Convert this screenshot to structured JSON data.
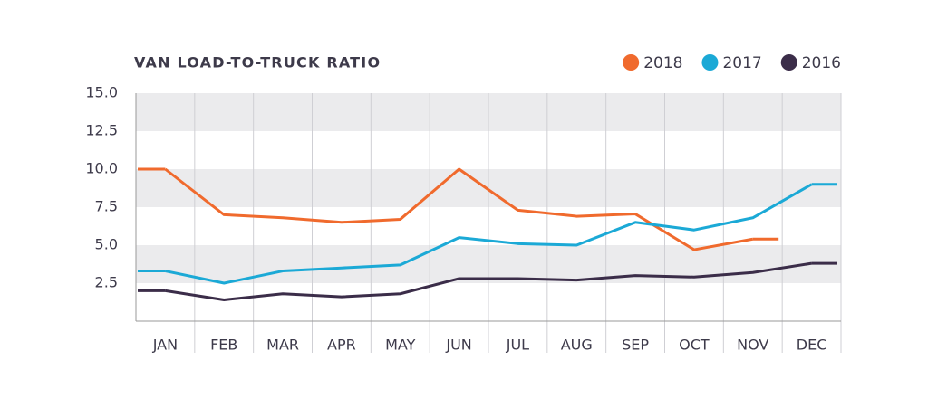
{
  "chart_data": {
    "type": "line",
    "title": "VAN LOAD-TO-TRUCK RATIO",
    "categories": [
      "JAN",
      "FEB",
      "MAR",
      "APR",
      "MAY",
      "JUN",
      "JUL",
      "AUG",
      "SEP",
      "OCT",
      "NOV",
      "DEC"
    ],
    "series": [
      {
        "name": "2018",
        "color": "#f06a2d",
        "values": [
          10.0,
          7.0,
          6.8,
          6.5,
          6.7,
          10.0,
          7.3,
          6.9,
          7.05,
          4.7,
          5.4,
          null
        ]
      },
      {
        "name": "2017",
        "color": "#1ba9d6",
        "values": [
          3.3,
          2.5,
          3.3,
          3.5,
          3.7,
          5.5,
          5.1,
          5.0,
          6.5,
          6.0,
          6.8,
          9.0
        ]
      },
      {
        "name": "2016",
        "color": "#3b2d49",
        "values": [
          2.0,
          1.4,
          1.8,
          1.6,
          1.8,
          2.8,
          2.8,
          2.7,
          3.0,
          2.9,
          3.2,
          3.8
        ]
      }
    ],
    "ylim": [
      0,
      15
    ],
    "yticks": [
      2.5,
      {
        "value": 5,
        "label": "5.0"
      },
      7.5,
      {
        "value": 10,
        "label": "10.0"
      },
      12.5,
      {
        "value": 15,
        "label": "15.0"
      }
    ],
    "grid": "bands",
    "legend": "top-right"
  }
}
